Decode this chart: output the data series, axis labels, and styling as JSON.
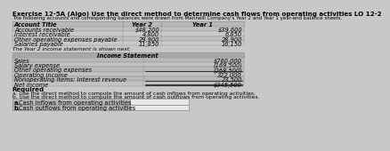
{
  "title": "Exercise 12-5A (Algo) Use the direct method to determine cash flows from operating activities LO 12-2",
  "subtitle": "The following accounts and corresponding balances were drawn from Marinelli Company's Year 2 and Year 1 year-end balance sheets.",
  "balance_sheet": {
    "headers": [
      "Account Title",
      "Year 2",
      "Year 1"
    ],
    "rows": [
      [
        "Accounts receivable",
        "$48,200",
        "$39,600"
      ],
      [
        "Interest receivable",
        "4,800",
        "6,850"
      ],
      [
        "Other operating expenses payable",
        "29,900",
        "28,900"
      ],
      [
        "Salaries payable",
        "11,850",
        "16,150"
      ]
    ]
  },
  "income_stmt_label": "The Year 2 income statement is shown next.",
  "income_statement": {
    "header": "Income Statement",
    "rows": [
      [
        "Sales",
        "$760,000"
      ],
      [
        "Salary expense",
        "(169,500)"
      ],
      [
        "Other operating expenses",
        "(268,500)"
      ],
      [
        "Operating income",
        "322,000"
      ],
      [
        "Nonoperating items: Interest revenue",
        "23,500"
      ],
      [
        "Net income",
        "$345,500"
      ]
    ]
  },
  "required_text": "Required",
  "required_a": "a. Use the direct method to compute the amount of cash inflows from operating activities.",
  "required_b": "b. Use the direct method to compute the amount of cash outflows from operating activities.",
  "answer_rows": [
    [
      "a.",
      "Cash inflows from operating activities"
    ],
    [
      "b.",
      "Cash outflows from operating activities"
    ]
  ],
  "bg_color": "#c8c8c8",
  "table_bg": "#b8b8b8",
  "table_row_even": "#c0c0c0",
  "table_row_odd": "#cacaca",
  "income_header_bg": "#a8a8a8",
  "income_row_even": "#b8b8b8",
  "income_row_odd": "#c2c2c2",
  "answer_label_bg": "#b8b8b8",
  "answer_value_bg": "#e8e8e8",
  "font_size": 4.8
}
